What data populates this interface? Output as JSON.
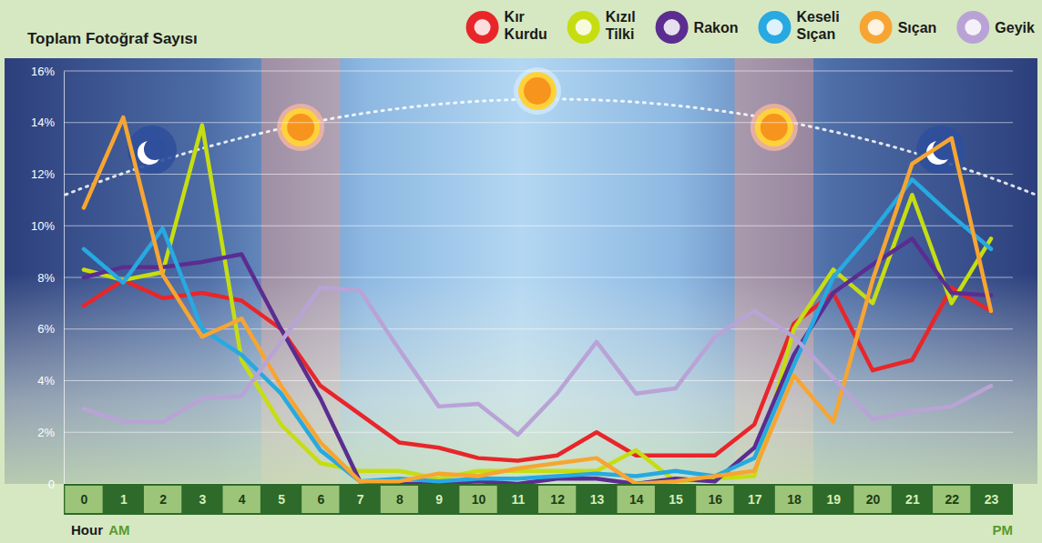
{
  "chart_data": {
    "type": "line",
    "title": "Toplam Fotoğraf Sayısı",
    "x_label": "Hour",
    "annotations": [
      "AM",
      "PM"
    ],
    "categories": [
      "0",
      "1",
      "2",
      "3",
      "4",
      "5",
      "6",
      "7",
      "8",
      "9",
      "10",
      "11",
      "12",
      "13",
      "14",
      "15",
      "16",
      "17",
      "18",
      "19",
      "20",
      "21",
      "22",
      "23"
    ],
    "ylim": [
      0,
      16
    ],
    "yticks": [
      0,
      {
        "value": 2,
        "label": "2%"
      },
      {
        "value": 4,
        "label": "4%"
      },
      {
        "value": 6,
        "label": "6%"
      },
      {
        "value": 8,
        "label": "8%"
      },
      {
        "value": 10,
        "label": "10%"
      },
      {
        "value": 12,
        "label": "12%"
      },
      {
        "value": 14,
        "label": "14%"
      },
      {
        "value": 16,
        "label": "16%"
      }
    ],
    "grid": true,
    "legend": "top",
    "series": [
      {
        "name": "Kır Kurdu",
        "color": "#e8262a",
        "values": [
          6.9,
          7.9,
          7.2,
          7.4,
          7.1,
          6.0,
          3.8,
          2.7,
          1.6,
          1.4,
          1.0,
          0.9,
          1.1,
          2.0,
          1.1,
          1.1,
          1.1,
          2.3,
          6.2,
          7.4,
          4.4,
          4.8,
          7.6,
          6.7
        ]
      },
      {
        "name": "Kızıl Tilki",
        "color": "#c6dd12",
        "values": [
          8.3,
          7.9,
          8.2,
          13.9,
          4.8,
          2.3,
          0.8,
          0.5,
          0.5,
          0.2,
          0.5,
          0.5,
          0.5,
          0.5,
          1.3,
          0.1,
          0.2,
          0.3,
          6.0,
          8.3,
          7.0,
          11.2,
          7.0,
          9.5
        ]
      },
      {
        "name": "Rakon",
        "color": "#5b2d90",
        "values": [
          8.0,
          8.4,
          8.4,
          8.6,
          8.9,
          6.0,
          3.3,
          0.1,
          0.0,
          0.0,
          0.1,
          0.0,
          0.2,
          0.2,
          0.0,
          0.2,
          0.1,
          1.4,
          5.0,
          7.4,
          8.5,
          9.5,
          7.4,
          7.3
        ]
      },
      {
        "name": "Keseli Sıçan",
        "color": "#27a9e1",
        "values": [
          9.1,
          7.8,
          9.9,
          6.0,
          5.0,
          3.5,
          1.3,
          0.1,
          0.2,
          0.1,
          0.2,
          0.2,
          0.3,
          0.4,
          0.3,
          0.5,
          0.3,
          1.0,
          4.6,
          8.0,
          9.8,
          11.8,
          10.4,
          9.1
        ]
      },
      {
        "name": "Sıçan",
        "color": "#f7a532",
        "values": [
          10.7,
          14.2,
          8.1,
          5.7,
          6.4,
          3.8,
          1.6,
          0.1,
          0.1,
          0.4,
          0.3,
          0.6,
          0.8,
          1.0,
          0.0,
          0.1,
          0.3,
          0.5,
          4.2,
          2.4,
          7.9,
          12.4,
          13.4,
          6.7
        ]
      },
      {
        "name": "Geyik",
        "color": "#b9a3d6",
        "values": [
          2.9,
          2.4,
          2.4,
          3.3,
          3.4,
          5.5,
          7.6,
          7.5,
          5.2,
          3.0,
          3.1,
          1.9,
          3.5,
          5.5,
          3.5,
          3.7,
          5.7,
          6.7,
          5.7,
          4.1,
          2.5,
          2.8,
          3.0,
          3.8
        ]
      }
    ]
  }
}
